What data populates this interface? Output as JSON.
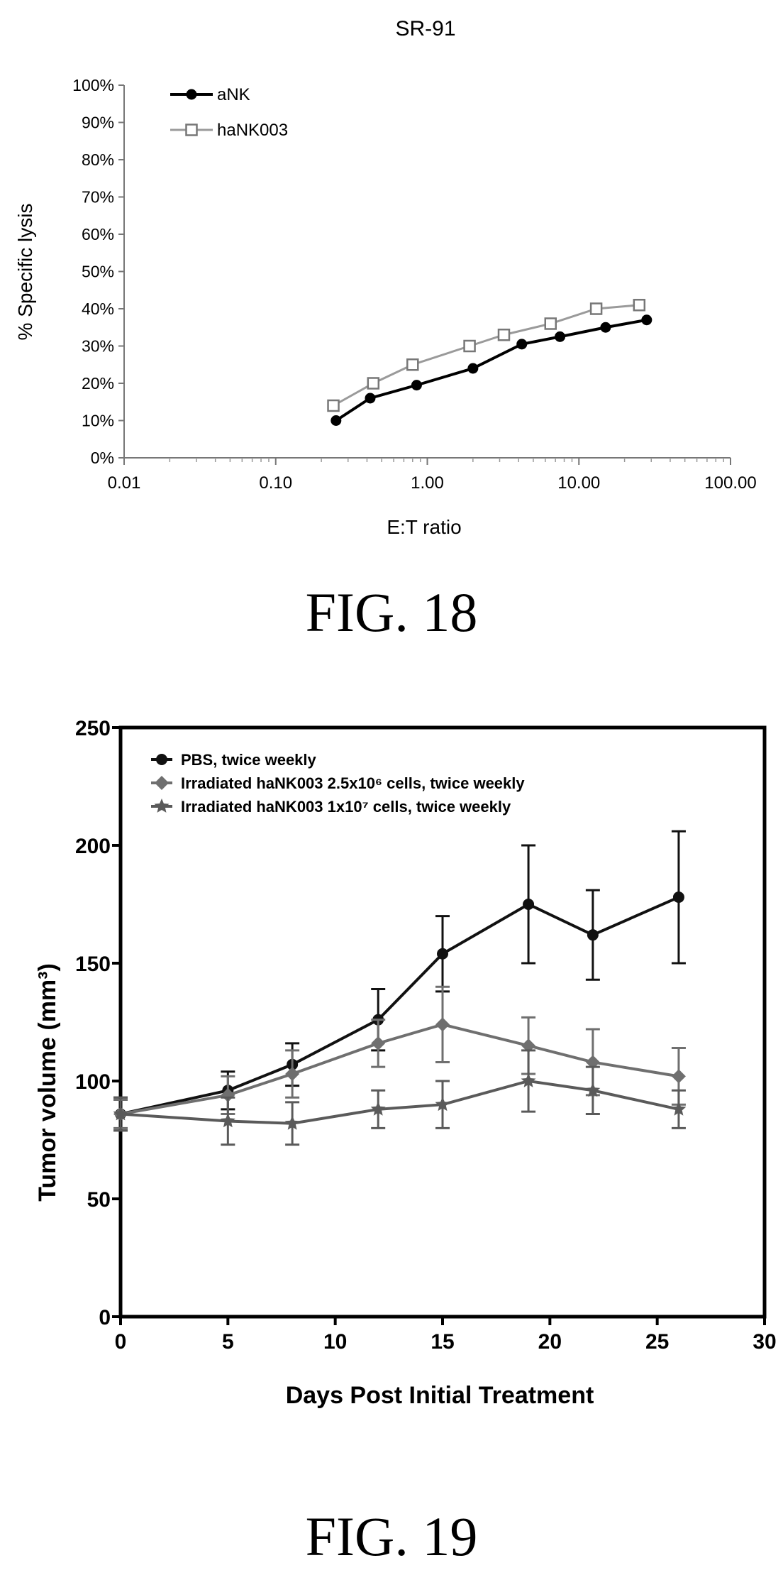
{
  "chart_data": [
    {
      "type": "line",
      "title": "SR-91",
      "xlabel": "E:T ratio",
      "ylabel": "% Specific lysis",
      "xscale": "log",
      "xlim": [
        0.01,
        100
      ],
      "ylim": [
        0,
        1.0
      ],
      "x_tick_labels": [
        "0.01",
        "0.10",
        "1.00",
        "10.00",
        "100.00"
      ],
      "y_tick_labels": [
        "0%",
        "10%",
        "20%",
        "30%",
        "40%",
        "50%",
        "60%",
        "70%",
        "80%",
        "90%",
        "100%"
      ],
      "grid": false,
      "legend_position": "top-left",
      "series": [
        {
          "name": "aNK",
          "marker": "filled-circle",
          "color": "#000000",
          "x": [
            0.25,
            0.42,
            0.85,
            2.0,
            4.2,
            7.5,
            15,
            28
          ],
          "y": [
            0.1,
            0.16,
            0.195,
            0.24,
            0.305,
            0.325,
            0.35,
            0.37
          ]
        },
        {
          "name": "haNK003",
          "marker": "open-square",
          "color": "#9a9a9a",
          "x": [
            0.24,
            0.44,
            0.8,
            1.9,
            3.2,
            6.5,
            13,
            25
          ],
          "y": [
            0.14,
            0.2,
            0.25,
            0.3,
            0.33,
            0.36,
            0.4,
            0.41
          ]
        }
      ]
    },
    {
      "type": "line",
      "title": "",
      "xlabel": "Days Post Initial Treatment",
      "ylabel": "Tumor volume (mm³)",
      "xlim": [
        0,
        30
      ],
      "ylim": [
        0,
        250
      ],
      "x_tick_labels": [
        "0",
        "5",
        "10",
        "15",
        "20",
        "25",
        "30"
      ],
      "y_tick_labels": [
        "0",
        "50",
        "100",
        "150",
        "200",
        "250"
      ],
      "grid": false,
      "legend_position": "top-left",
      "series": [
        {
          "name": "PBS, twice weekly",
          "marker": "circle",
          "color": "#111111",
          "x": [
            0,
            5,
            8,
            12,
            15,
            19,
            22,
            26
          ],
          "y": [
            86,
            96,
            107,
            126,
            154,
            175,
            162,
            178
          ],
          "err": [
            7,
            8,
            9,
            13,
            16,
            25,
            19,
            28
          ]
        },
        {
          "name": "Irradiated haNK003 2.5x10⁶ cells, twice weekly",
          "marker": "diamond",
          "color": "#6f6f6f",
          "x": [
            0,
            5,
            8,
            12,
            15,
            19,
            22,
            26
          ],
          "y": [
            86,
            94,
            103,
            116,
            124,
            115,
            108,
            102
          ],
          "err": [
            6,
            8,
            10,
            10,
            16,
            12,
            14,
            12
          ]
        },
        {
          "name": "Irradiated haNK003 1x10⁷ cells, twice weekly",
          "marker": "star",
          "color": "#5a5a5a",
          "x": [
            0,
            5,
            8,
            12,
            15,
            19,
            22,
            26
          ],
          "y": [
            86,
            83,
            82,
            88,
            90,
            100,
            96,
            88
          ],
          "err": [
            7,
            10,
            9,
            8,
            10,
            13,
            10,
            8
          ]
        }
      ]
    }
  ],
  "figure_labels": [
    "FIG. 18",
    "FIG. 19"
  ]
}
